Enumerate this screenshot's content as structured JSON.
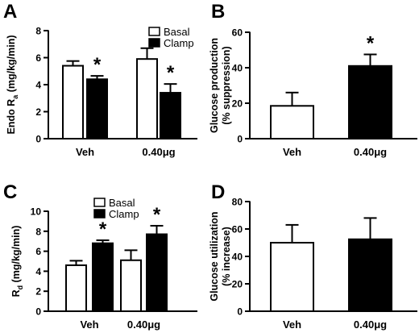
{
  "chart_data": [
    {
      "panel": "A",
      "type": "bar",
      "ylabel": "Endo R",
      "ylabel_sub": "a",
      "ylabel_unit": " (mg/kg/min)",
      "categories": [
        "Veh",
        "0.40μg"
      ],
      "ylim": [
        0,
        8
      ],
      "yticks": [
        0,
        2,
        4,
        6,
        8
      ],
      "legend_position": "top-right",
      "series": [
        {
          "name": "Basal",
          "color": "#ffffff",
          "values": [
            5.4,
            5.9
          ],
          "errors": [
            0.35,
            0.8
          ]
        },
        {
          "name": "Clamp",
          "color": "#000000",
          "values": [
            4.4,
            3.4
          ],
          "errors": [
            0.25,
            0.65
          ]
        }
      ],
      "annotations": [
        {
          "text": "*",
          "category": 0,
          "series": 1
        },
        {
          "text": "*",
          "category": 1,
          "series": 1
        }
      ]
    },
    {
      "panel": "B",
      "type": "bar",
      "ylabel": "Glucose production",
      "ylabel2": "(% suppression)",
      "categories": [
        "Veh",
        "0.40μg"
      ],
      "ylim": [
        0,
        60
      ],
      "yticks": [
        0,
        20,
        40,
        60
      ],
      "colors": [
        "#ffffff",
        "#000000"
      ],
      "values": [
        18.5,
        41
      ],
      "errors": [
        7.5,
        6.5
      ],
      "annotations": [
        {
          "text": "*",
          "category": 1
        }
      ]
    },
    {
      "panel": "C",
      "type": "bar",
      "ylabel": "R",
      "ylabel_sub": "d",
      "ylabel_unit": " (mg/kg/min)",
      "categories": [
        "Veh",
        "0.40μg"
      ],
      "ylim": [
        0,
        10
      ],
      "yticks": [
        0,
        2,
        4,
        6,
        8,
        10
      ],
      "legend_position": "top-left",
      "series": [
        {
          "name": "Basal",
          "color": "#ffffff",
          "values": [
            4.6,
            5.1
          ],
          "errors": [
            0.45,
            1.0
          ]
        },
        {
          "name": "Clamp",
          "color": "#000000",
          "values": [
            6.8,
            7.7
          ],
          "errors": [
            0.3,
            0.85
          ]
        }
      ],
      "annotations": [
        {
          "text": "*",
          "category": 0,
          "series": 1
        },
        {
          "text": "*",
          "category": 1,
          "series": 1
        }
      ]
    },
    {
      "panel": "D",
      "type": "bar",
      "ylabel": "Glucose utilization",
      "ylabel2": "(% increase)",
      "categories": [
        "Veh",
        "0.40μg"
      ],
      "ylim": [
        0,
        80
      ],
      "yticks": [
        0,
        20,
        40,
        60,
        80
      ],
      "colors": [
        "#ffffff",
        "#000000"
      ],
      "values": [
        50,
        52.5
      ],
      "errors": [
        13,
        15.5
      ],
      "annotations": []
    }
  ]
}
